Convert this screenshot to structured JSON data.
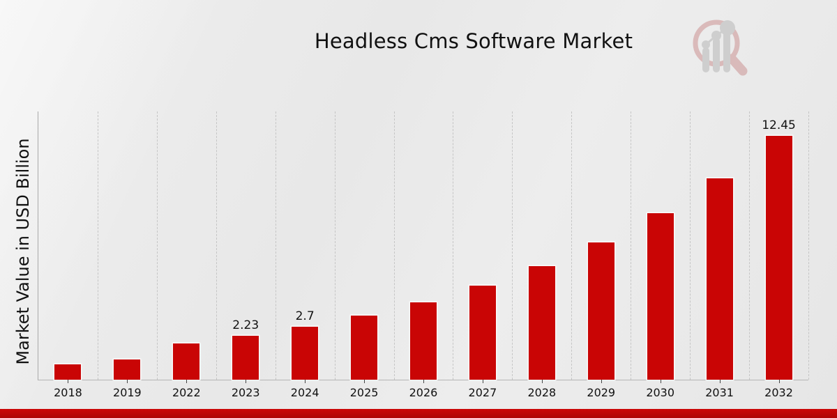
{
  "chart_data": {
    "type": "bar",
    "title": "Headless Cms Software Market",
    "xlabel": "",
    "ylabel": "Market Value in USD Billion",
    "categories": [
      "2018",
      "2019",
      "2022",
      "2023",
      "2024",
      "2025",
      "2026",
      "2027",
      "2028",
      "2029",
      "2030",
      "2031",
      "2032"
    ],
    "values": [
      0.78,
      1.02,
      1.84,
      2.23,
      2.7,
      3.27,
      3.96,
      4.79,
      5.8,
      7.02,
      8.5,
      10.29,
      12.45
    ],
    "data_labels": {
      "2023": "2.23",
      "2024": "2.7",
      "2032": "12.45"
    },
    "ylim": [
      0,
      13.7
    ],
    "grid": "vertical-dashed",
    "legend": "none",
    "bar_color": "#c90505"
  },
  "colors": {
    "bar": "#c90505",
    "footer_band": "#c00505",
    "background": "#e9e9e9",
    "gridline": "#c5c5c5",
    "axis": "#a9a9a9",
    "text": "#111111",
    "watermark_ring": "#b24b4b",
    "watermark_bars": "#8c8c8c"
  },
  "icons": {
    "watermark": "magnifier-bar-chart-logo"
  }
}
